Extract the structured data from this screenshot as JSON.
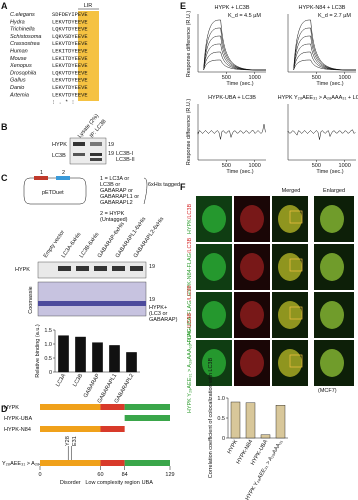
{
  "panel_a": {
    "letter": "A",
    "motif": "LIR",
    "species": [
      "C.elegans",
      "Hydra",
      "Trichinella",
      "Schistosoma",
      "Crassostrea",
      "Human",
      "Mouse",
      "Xenopus",
      "Drosophila",
      "Gallus",
      "Danio",
      "Artemia"
    ],
    "sequences": [
      "SDFDEYIPEVE",
      "LEKVTDYEEVE",
      "LQKVTDYEEVE",
      "LQKVSDYEEVE",
      "LEKVTDYEEVE",
      "LEKITDYEEVE",
      "LEKITDYEEVE",
      "LEKVTDYEEVE",
      "LQKVTDYEEVE",
      "LEKVTDYEEVE",
      "LEKVTDYEEVE",
      "LEKVTDYEEVE"
    ],
    "conservation": ":   .  * :"
  },
  "panel_b": {
    "letter": "B",
    "lanes": [
      "Lysate (2%)",
      "IP: LC3B"
    ],
    "rows": [
      "HYPK",
      "LC3B"
    ],
    "markers": [
      "19",
      "19"
    ],
    "bands": [
      "LC3B-I",
      "LC3B-II"
    ]
  },
  "panel_c": {
    "letter": "C",
    "plasmid": "pETDuet",
    "sites": [
      "1",
      "2"
    ],
    "legend_1": [
      "1 = LC3A or",
      "LC3B or",
      "GABARAP or",
      "GABARAPL1 or",
      "GABARAPL2"
    ],
    "tag": "6xHis tagged",
    "legend_2": [
      "2 = HYPK",
      "(Untagged)"
    ],
    "lanes": [
      "Empty vector",
      "LC3A-6xHis",
      "LC3B-6xHis",
      "GABARAP-6xHis",
      "GABARAPL1-6xHis",
      "GABARAPL2-6xHis"
    ],
    "blot_labels": [
      "HYPK",
      "Coomassie"
    ],
    "markers": [
      "19",
      "19"
    ],
    "complex_label": [
      "HYPK+",
      "(LC3 or",
      "GABARAP)"
    ],
    "chart": {
      "type": "bar",
      "y_label": "Relative binding (a.u.)",
      "categories": [
        "LC3A",
        "LC3B",
        "GABARAP",
        "GABARAPL1",
        "GABARAPL2"
      ],
      "values": [
        1.3,
        1.25,
        1.05,
        0.95,
        0.7
      ],
      "color": "#111111",
      "ylim": [
        0,
        1.5
      ],
      "yticks": [
        0,
        0.5,
        {
          "value": 1,
          "label": "1.0"
        },
        1.5
      ]
    }
  },
  "panel_d": {
    "letter": "D",
    "constructs": [
      "HYPK",
      "HYPK-UBA",
      "HYPK-N84",
      "Y₂₈AEE₃₁ > A₂₈AAA₃₁"
    ],
    "residue_ticks": [
      0,
      60,
      84,
      129
    ],
    "mutations": [
      "Y28",
      "E31"
    ],
    "regions": [
      "Disorder",
      "Low complexity region",
      "UBA"
    ]
  },
  "panel_e": {
    "letter": "E",
    "plots": [
      {
        "title": "HYPK + LC3B",
        "kd": "K_d = 4.5 µM"
      },
      {
        "title": "HYPK-N84 + LC3B",
        "kd": "K_d = 2.7 µM"
      },
      {
        "title": "HYPK-UBA + LC3B"
      },
      {
        "title": "HYPK Y₂₈AEE₃₁ > A₂₈AAA₃₁ + LC3B"
      }
    ],
    "y_label": "Response difference (R.U.)",
    "x_label": "Time (sec.)",
    "xticks": [
      500,
      1000
    ]
  },
  "panel_f": {
    "letter": "F",
    "columns": [
      "Merged",
      "Enlarged"
    ],
    "row_names": [
      "HYPK",
      "HYPK-N84-FLAG",
      "HYPK-UBA-FLAG",
      "HYPK Y₂₈AEE₃₁ > A₂₈AAA₃₁-FLAG"
    ],
    "partner": "/LC3B",
    "cell_line": "(MCF7)",
    "chart": {
      "type": "bar",
      "y_label": "Correlation coefficient of colocalization with LC3B",
      "categories": [
        "HYPK",
        "HYPK-N84",
        "HYPK-UBA",
        "HYPK Y₂₈AEE₃₁ > A₂₈AAA₃₁"
      ],
      "values": [
        0.9,
        0.88,
        0.08,
        0.82
      ],
      "color": "#d8c79a",
      "ylim": [
        0,
        1
      ],
      "yticks": [
        0,
        0.5,
        {
          "value": 1,
          "label": "1.0"
        }
      ]
    }
  }
}
